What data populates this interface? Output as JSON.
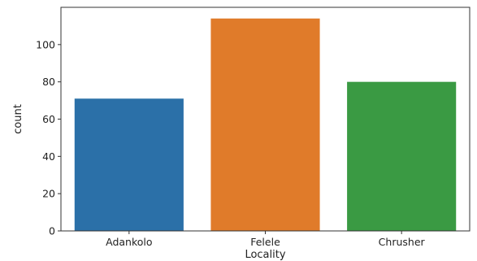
{
  "chart_data": {
    "type": "bar",
    "xlabel": "Locality",
    "ylabel": "count",
    "categories": [
      "Adankolo",
      "Felele",
      "Chrusher"
    ],
    "values": [
      71,
      114,
      80
    ],
    "colors": [
      "#2b70a8",
      "#e07b2a",
      "#3a9a43"
    ],
    "ylim": [
      0,
      120
    ],
    "yticks": [
      0,
      20,
      40,
      60,
      80,
      100
    ],
    "grid": false,
    "legend": "none"
  }
}
